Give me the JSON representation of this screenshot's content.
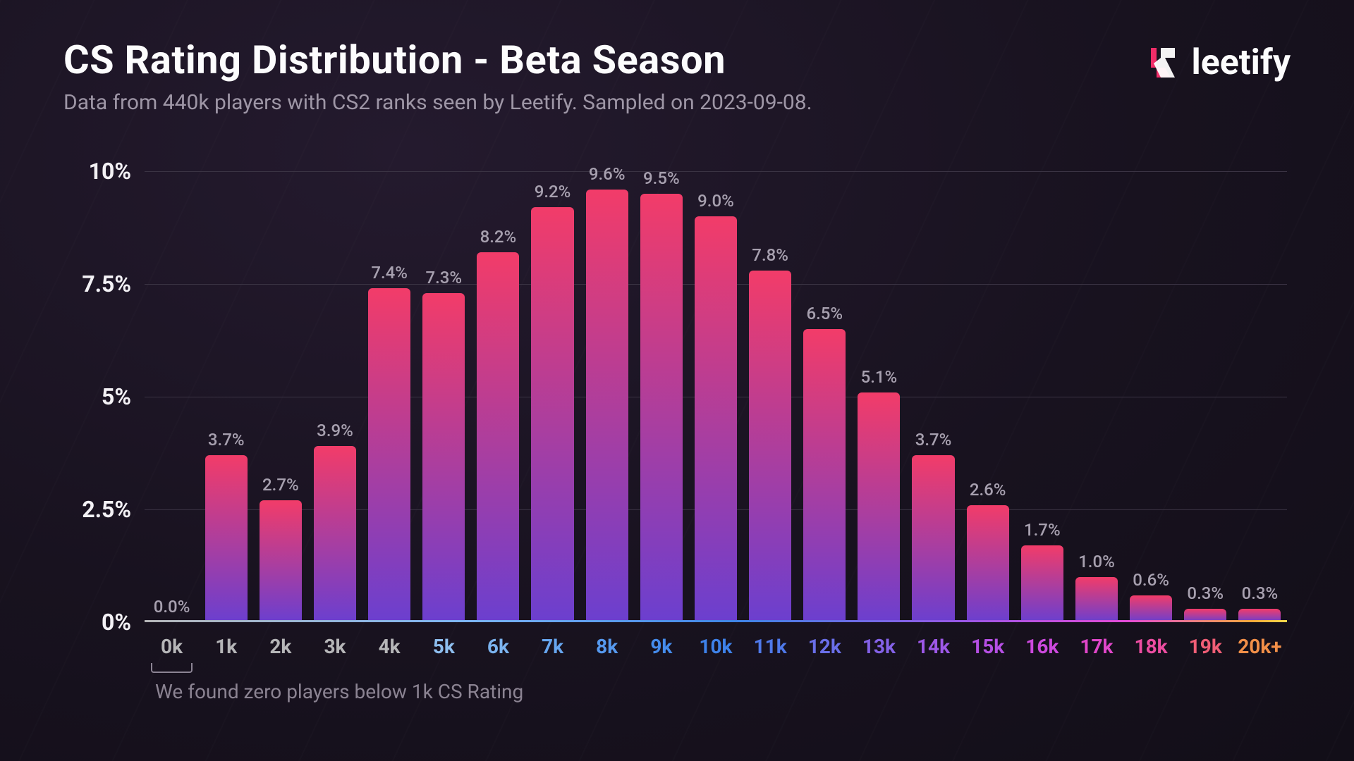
{
  "header": {
    "title": "CS Rating Distribution - Beta Season",
    "subtitle": "Data from 440k players with CS2 ranks seen by Leetify. Sampled on 2023-09-08.",
    "logo_text": "leetify"
  },
  "logo": {
    "shape1_color": "#ef2d68",
    "shape2_color": "#ffffff"
  },
  "chart": {
    "type": "bar",
    "ylim": [
      0,
      10
    ],
    "yticks": [
      {
        "value": 0,
        "label": "0%"
      },
      {
        "value": 2.5,
        "label": "2.5%"
      },
      {
        "value": 5,
        "label": "5%"
      },
      {
        "value": 7.5,
        "label": "7.5%"
      },
      {
        "value": 10,
        "label": "10%"
      }
    ],
    "grid_color": "#3b3444",
    "background_color": "#1a1320",
    "bar_gradient_top": "#f23c69",
    "bar_gradient_bottom": "#6b3fcf",
    "bar_width": 0.78,
    "value_label_color": "#a7a0af",
    "value_label_fontsize": 24,
    "ylabel_fontsize": 32,
    "xlabel_fontsize": 28,
    "data": [
      {
        "category": "0k",
        "value": 0.0,
        "label": "0.0%",
        "color": "#b6b6b8"
      },
      {
        "category": "1k",
        "value": 3.7,
        "label": "3.7%",
        "color": "#b6b6b8"
      },
      {
        "category": "2k",
        "value": 2.7,
        "label": "2.7%",
        "color": "#b6b6b8"
      },
      {
        "category": "3k",
        "value": 3.9,
        "label": "3.9%",
        "color": "#b6b6b8"
      },
      {
        "category": "4k",
        "value": 7.4,
        "label": "7.4%",
        "color": "#b6b6b8"
      },
      {
        "category": "5k",
        "value": 7.3,
        "label": "7.3%",
        "color": "#8ebeee"
      },
      {
        "category": "6k",
        "value": 8.2,
        "label": "8.2%",
        "color": "#7bb3ef"
      },
      {
        "category": "7k",
        "value": 9.2,
        "label": "9.2%",
        "color": "#67a6ef"
      },
      {
        "category": "8k",
        "value": 9.6,
        "label": "9.6%",
        "color": "#5699ee"
      },
      {
        "category": "9k",
        "value": 9.5,
        "label": "9.5%",
        "color": "#458cec"
      },
      {
        "category": "10k",
        "value": 9.0,
        "label": "9.0%",
        "color": "#3e82ea"
      },
      {
        "category": "11k",
        "value": 7.8,
        "label": "7.8%",
        "color": "#4f79ea"
      },
      {
        "category": "12k",
        "value": 6.5,
        "label": "6.5%",
        "color": "#6a6fe9"
      },
      {
        "category": "13k",
        "value": 5.1,
        "label": "5.1%",
        "color": "#8462e8"
      },
      {
        "category": "14k",
        "value": 3.7,
        "label": "3.7%",
        "color": "#9d58e7"
      },
      {
        "category": "15k",
        "value": 2.6,
        "label": "2.6%",
        "color": "#b64fe4"
      },
      {
        "category": "16k",
        "value": 1.7,
        "label": "1.7%",
        "color": "#cd49de"
      },
      {
        "category": "17k",
        "value": 1.0,
        "label": "1.0%",
        "color": "#e146ca"
      },
      {
        "category": "18k",
        "value": 0.6,
        "label": "0.6%",
        "color": "#ec4da1"
      },
      {
        "category": "19k",
        "value": 0.3,
        "label": "0.3%",
        "color": "#f05e76"
      },
      {
        "category": "20k+",
        "value": 0.3,
        "label": "0.3%",
        "color": "#f28f48"
      }
    ],
    "baseline_gradient": "linear-gradient(90deg,#b6b6b8 0%, #7db5f5 28%, #3f84e6 52%, #9b56e6 72%, #e34bd7 86%, #f4a93b 97%, #f7d94b 100%)"
  },
  "footnote": {
    "text": "We found zero players below 1k CS Rating",
    "color": "#8b8392",
    "fontsize": 28
  }
}
